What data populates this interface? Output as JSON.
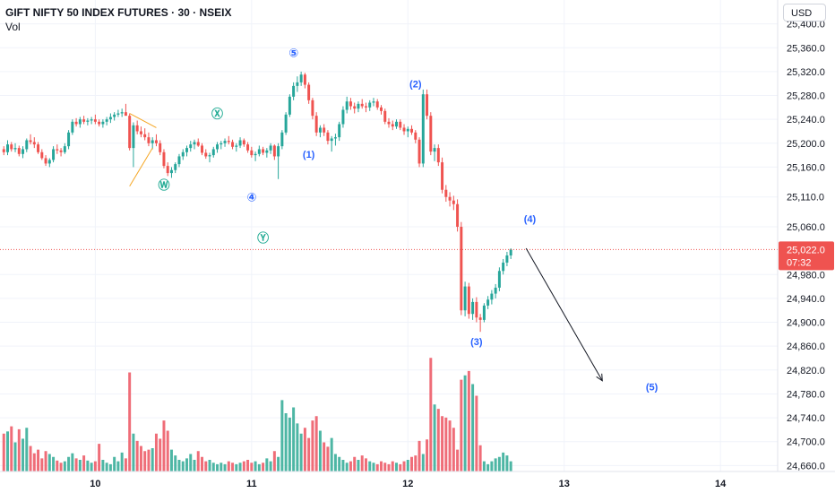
{
  "header": {
    "symbol_title": "GIFT NIFTY 50 INDEX FUTURES · 30 · NSEIX",
    "volume_label": "Vol",
    "currency": "USD"
  },
  "colors": {
    "up": "#26a69a",
    "down": "#ef5350",
    "up_volume": "#4db6a4",
    "down_volume": "#ef6d78",
    "wave_label": "#2962ff",
    "corrective_label": "#22ab94",
    "grid": "#f0f3fa",
    "price_line": "#ef5350",
    "trendline": "#f5a623",
    "projection_arrow": "#131722"
  },
  "chart_data": {
    "type": "candlestick",
    "y_axis": {
      "min": 24650,
      "max": 25440,
      "ticks": [
        "25,400.0",
        "25,360.0",
        "25,320.0",
        "25,280.0",
        "25,240.0",
        "25,200.0",
        "25,160.0",
        "25,110.0",
        "25,060.0",
        "24,980.0",
        "24,940.0",
        "24,900.0",
        "24,860.0",
        "24,820.0",
        "24,780.0",
        "24,740.0",
        "24,700.0",
        "24,660.0"
      ],
      "tick_values": [
        25400,
        25360,
        25320,
        25280,
        25240,
        25200,
        25160,
        25110,
        25060,
        24980,
        24940,
        24900,
        24860,
        24820,
        24780,
        24740,
        24700,
        24660
      ]
    },
    "x_axis": {
      "bar_min": 0,
      "bar_max": 148,
      "ticks": [
        {
          "label": "10",
          "bar": 24
        },
        {
          "label": "11",
          "bar": 65
        },
        {
          "label": "12",
          "bar": 106
        },
        {
          "label": "13",
          "bar": 147
        },
        {
          "label": "14",
          "bar": 188
        }
      ]
    },
    "last_price": {
      "value": 25022.0,
      "label": "25,022.0",
      "countdown": "07:32"
    },
    "candles": [
      [
        25190,
        25195,
        25180,
        25185,
        52
      ],
      [
        25185,
        25205,
        25180,
        25198,
        55
      ],
      [
        25198,
        25202,
        25186,
        25190,
        62
      ],
      [
        25190,
        25200,
        25185,
        25192,
        40
      ],
      [
        25192,
        25196,
        25178,
        25182,
        58
      ],
      [
        25182,
        25195,
        25175,
        25190,
        45
      ],
      [
        25190,
        25208,
        25185,
        25205,
        60
      ],
      [
        25205,
        25215,
        25198,
        25202,
        35
      ],
      [
        25202,
        25210,
        25192,
        25198,
        25
      ],
      [
        25198,
        25202,
        25182,
        25185,
        30
      ],
      [
        25185,
        25190,
        25172,
        25175,
        18
      ],
      [
        25175,
        25180,
        25162,
        25166,
        28
      ],
      [
        25166,
        25175,
        25160,
        25172,
        24
      ],
      [
        25172,
        25195,
        25168,
        25190,
        20
      ],
      [
        25190,
        25198,
        25182,
        25188,
        15
      ],
      [
        25188,
        25192,
        25178,
        25185,
        12
      ],
      [
        25185,
        25200,
        25182,
        25195,
        14
      ],
      [
        25195,
        25222,
        25190,
        25218,
        20
      ],
      [
        25218,
        25240,
        25214,
        25236,
        25
      ],
      [
        25236,
        25242,
        25228,
        25232,
        18
      ],
      [
        25232,
        25244,
        25226,
        25240,
        16
      ],
      [
        25240,
        25246,
        25232,
        25236,
        22
      ],
      [
        25236,
        25242,
        25230,
        25238,
        15
      ],
      [
        25238,
        25244,
        25232,
        25240,
        12
      ],
      [
        25240,
        25248,
        25232,
        25236,
        14
      ],
      [
        25236,
        25240,
        25228,
        25232,
        38
      ],
      [
        25232,
        25240,
        25226,
        25236,
        16
      ],
      [
        25236,
        25244,
        25230,
        25240,
        12
      ],
      [
        25240,
        25250,
        25234,
        25244,
        10
      ],
      [
        25244,
        25252,
        25238,
        25248,
        20
      ],
      [
        25248,
        25256,
        25244,
        25250,
        14
      ],
      [
        25250,
        25258,
        25244,
        25252,
        26
      ],
      [
        25252,
        25266,
        25248,
        25246,
        18
      ],
      [
        25246,
        25250,
        25188,
        25192,
        136
      ],
      [
        25192,
        25235,
        25160,
        25230,
        52
      ],
      [
        25230,
        25238,
        25215,
        25220,
        42
      ],
      [
        25220,
        25228,
        25210,
        25215,
        35
      ],
      [
        25215,
        25225,
        25205,
        25210,
        28
      ],
      [
        25210,
        25218,
        25195,
        25200,
        30
      ],
      [
        25200,
        25210,
        25190,
        25205,
        32
      ],
      [
        25205,
        25215,
        25195,
        25200,
        52
      ],
      [
        25200,
        25205,
        25180,
        25185,
        45
      ],
      [
        25185,
        25190,
        25158,
        25162,
        70
      ],
      [
        25162,
        25168,
        25145,
        25150,
        56
      ],
      [
        25150,
        25160,
        25142,
        25155,
        30
      ],
      [
        25155,
        25168,
        25150,
        25165,
        22
      ],
      [
        25165,
        25182,
        25160,
        25178,
        16
      ],
      [
        25178,
        25190,
        25172,
        25185,
        14
      ],
      [
        25185,
        25196,
        25178,
        25192,
        18
      ],
      [
        25192,
        25204,
        25186,
        25198,
        24
      ],
      [
        25198,
        25206,
        25190,
        25202,
        16
      ],
      [
        25202,
        25208,
        25194,
        25196,
        28
      ],
      [
        25196,
        25200,
        25180,
        25184,
        20
      ],
      [
        25184,
        25190,
        25174,
        25178,
        14
      ],
      [
        25178,
        25184,
        25168,
        25180,
        16
      ],
      [
        25180,
        25194,
        25176,
        25190,
        12
      ],
      [
        25190,
        25202,
        25184,
        25198,
        10
      ],
      [
        25198,
        25204,
        25190,
        25200,
        12
      ],
      [
        25200,
        25208,
        25194,
        25204,
        10
      ],
      [
        25204,
        25212,
        25198,
        25202,
        14
      ],
      [
        25202,
        25206,
        25190,
        25194,
        12
      ],
      [
        25194,
        25200,
        25186,
        25196,
        10
      ],
      [
        25196,
        25210,
        25192,
        25205,
        12
      ],
      [
        25205,
        25208,
        25194,
        25198,
        14
      ],
      [
        25198,
        25202,
        25184,
        25188,
        16
      ],
      [
        25188,
        25194,
        25176,
        25180,
        12
      ],
      [
        25180,
        25186,
        25170,
        25182,
        14
      ],
      [
        25182,
        25196,
        25178,
        25190,
        10
      ],
      [
        25190,
        25194,
        25180,
        25184,
        12
      ],
      [
        25184,
        25192,
        25176,
        25188,
        18
      ],
      [
        25188,
        25200,
        25182,
        25196,
        14
      ],
      [
        25196,
        25198,
        25172,
        25178,
        28
      ],
      [
        25178,
        25200,
        25140,
        25195,
        20
      ],
      [
        25195,
        25222,
        25190,
        25218,
        98
      ],
      [
        25218,
        25252,
        25214,
        25248,
        80
      ],
      [
        25248,
        25282,
        25244,
        25278,
        74
      ],
      [
        25278,
        25302,
        25272,
        25296,
        88
      ],
      [
        25296,
        25312,
        25286,
        25302,
        66
      ],
      [
        25302,
        25320,
        25296,
        25315,
        52
      ],
      [
        25315,
        25318,
        25292,
        25298,
        60
      ],
      [
        25298,
        25302,
        25266,
        25272,
        46
      ],
      [
        25272,
        25276,
        25240,
        25246,
        70
      ],
      [
        25246,
        25252,
        25212,
        25218,
        76
      ],
      [
        25218,
        25230,
        25210,
        25226,
        56
      ],
      [
        25226,
        25232,
        25212,
        25218,
        40
      ],
      [
        25218,
        25222,
        25198,
        25204,
        34
      ],
      [
        25204,
        25212,
        25186,
        25208,
        46
      ],
      [
        25208,
        25216,
        25196,
        25210,
        24
      ],
      [
        25210,
        25236,
        25204,
        25232,
        20
      ],
      [
        25232,
        25262,
        25226,
        25256,
        16
      ],
      [
        25256,
        25278,
        25250,
        25270,
        12
      ],
      [
        25270,
        25276,
        25256,
        25262,
        14
      ],
      [
        25262,
        25268,
        25250,
        25258,
        20
      ],
      [
        25258,
        25270,
        25252,
        25266,
        16
      ],
      [
        25266,
        25274,
        25258,
        25262,
        22
      ],
      [
        25262,
        25268,
        25252,
        25260,
        18
      ],
      [
        25260,
        25272,
        25254,
        25268,
        14
      ],
      [
        25268,
        25276,
        25262,
        25270,
        12
      ],
      [
        25270,
        25274,
        25256,
        25260,
        10
      ],
      [
        25260,
        25264,
        25248,
        25254,
        14
      ],
      [
        25254,
        25258,
        25232,
        25236,
        12
      ],
      [
        25236,
        25242,
        25226,
        25232,
        10
      ],
      [
        25232,
        25238,
        25222,
        25228,
        14
      ],
      [
        25228,
        25240,
        25224,
        25236,
        12
      ],
      [
        25236,
        25240,
        25222,
        25226,
        10
      ],
      [
        25226,
        25232,
        25214,
        25220,
        14
      ],
      [
        25220,
        25228,
        25210,
        25224,
        16
      ],
      [
        25224,
        25230,
        25214,
        25218,
        20
      ],
      [
        25218,
        25222,
        25200,
        25206,
        22
      ],
      [
        25206,
        25210,
        25160,
        25166,
        42
      ],
      [
        25166,
        25290,
        25160,
        25282,
        24
      ],
      [
        25282,
        25290,
        25240,
        25246,
        44
      ],
      [
        25246,
        25252,
        25180,
        25186,
        156
      ],
      [
        25186,
        25198,
        25170,
        25192,
        92
      ],
      [
        25192,
        25198,
        25162,
        25168,
        86
      ],
      [
        25168,
        25176,
        25116,
        25122,
        76
      ],
      [
        25122,
        25130,
        25102,
        25110,
        74
      ],
      [
        25110,
        25118,
        25094,
        25104,
        70
      ],
      [
        25104,
        25112,
        25088,
        25098,
        60
      ],
      [
        25098,
        25106,
        25052,
        25060,
        30
      ],
      [
        25060,
        25068,
        24912,
        24920,
        126
      ],
      [
        24920,
        24968,
        24910,
        24960,
        132
      ],
      [
        24960,
        24966,
        24906,
        24914,
        138
      ],
      [
        24914,
        24940,
        24904,
        24934,
        120
      ],
      [
        24934,
        24942,
        24900,
        24908,
        104
      ],
      [
        24908,
        24914,
        24884,
        24904,
        36
      ],
      [
        24904,
        24932,
        24900,
        24928,
        14
      ],
      [
        24928,
        24944,
        24922,
        24938,
        10
      ],
      [
        24938,
        24954,
        24930,
        24948,
        14
      ],
      [
        24948,
        24964,
        24940,
        24958,
        18
      ],
      [
        24958,
        24992,
        24952,
        24986,
        20
      ],
      [
        24986,
        25006,
        24980,
        25000,
        26
      ],
      [
        25000,
        25018,
        24994,
        25012,
        22
      ],
      [
        25012,
        25024,
        25006,
        25022,
        14
      ]
    ],
    "wave_labels": [
      {
        "text": "Ⓦ",
        "bar": 42,
        "price": 25128,
        "kind": "corrective"
      },
      {
        "text": "Ⓧ",
        "bar": 56,
        "price": 25248,
        "kind": "corrective"
      },
      {
        "text": "Ⓨ",
        "bar": 68,
        "price": 25040,
        "kind": "corrective"
      },
      {
        "text": "④",
        "bar": 65,
        "price": 25108,
        "kind": "impulse"
      },
      {
        "text": "⑤",
        "bar": 76,
        "price": 25350,
        "kind": "impulse"
      },
      {
        "text": "(1)",
        "bar": 80,
        "price": 25180,
        "kind": "impulse"
      },
      {
        "text": "(2)",
        "bar": 108,
        "price": 25298,
        "kind": "impulse"
      },
      {
        "text": "(3)",
        "bar": 124,
        "price": 24866,
        "kind": "impulse"
      },
      {
        "text": "(4)",
        "bar": 138,
        "price": 25072,
        "kind": "impulse"
      },
      {
        "text": "(5)",
        "bar": 170,
        "price": 24790,
        "kind": "impulse"
      }
    ],
    "projection": {
      "from_bar": 137,
      "from_price": 25024,
      "to_bar": 157,
      "to_price": 24802
    }
  }
}
